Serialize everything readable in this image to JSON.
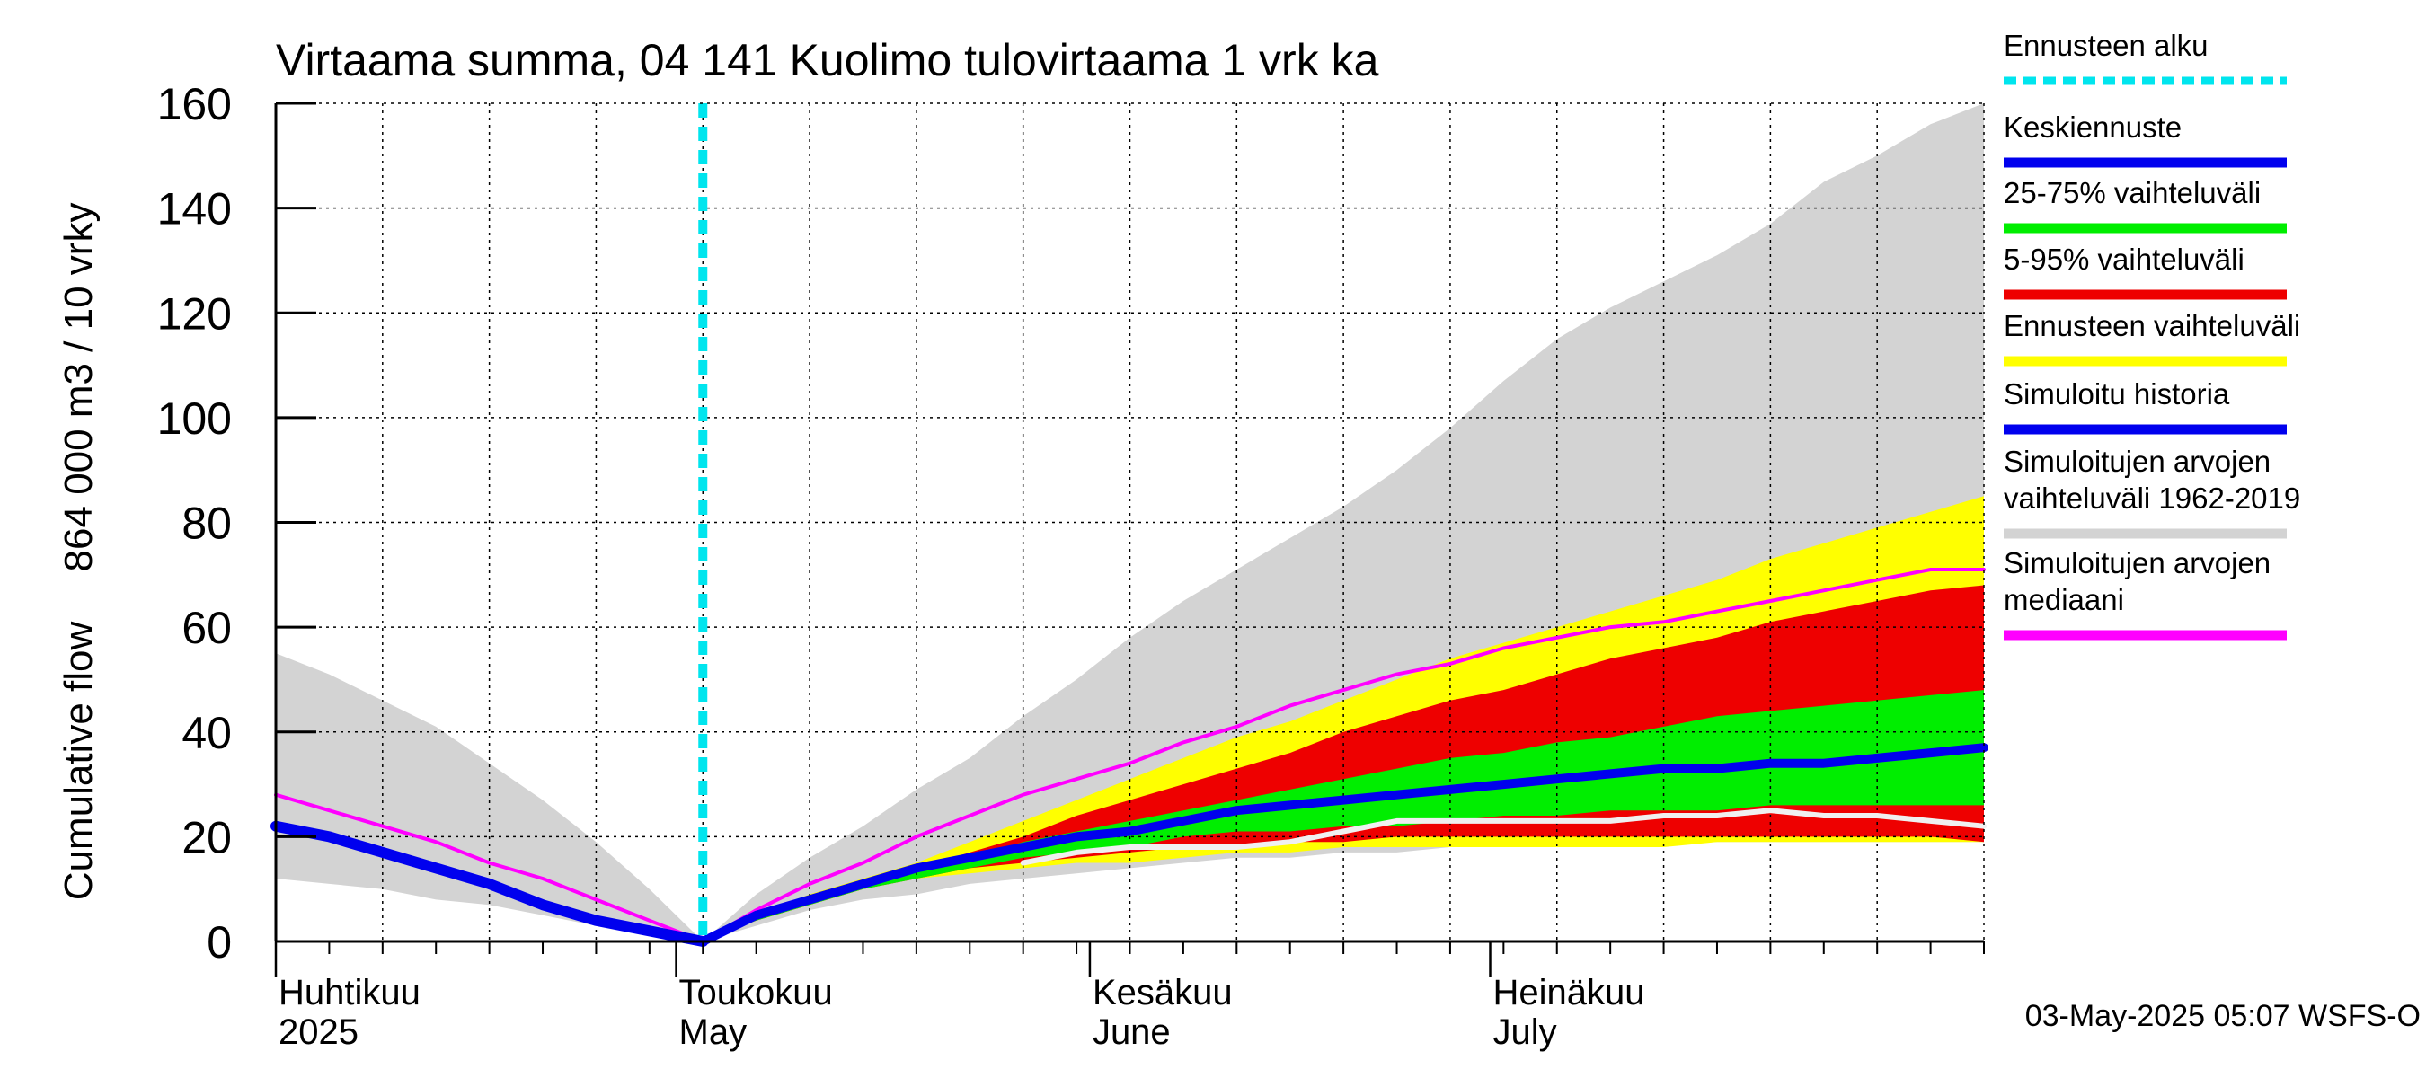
{
  "chart_data": {
    "type": "area",
    "title": "Virtaama summa, 04 141 Kuolimo tulovirtaama 1 vrk ka",
    "ylabel": "864 000 m3 / 10 vrky",
    "ylabel2": "Cumulative flow",
    "ylim": [
      0,
      160
    ],
    "y_ticks": [
      0,
      20,
      40,
      60,
      80,
      100,
      120,
      140,
      160
    ],
    "x_range_days": [
      0,
      128
    ],
    "month_labels": [
      {
        "fi": "Huhtikuu",
        "en": "2025",
        "day": 0
      },
      {
        "fi": "Toukokuu",
        "en": "May",
        "day": 30
      },
      {
        "fi": "Kesäkuu",
        "en": "June",
        "day": 61
      },
      {
        "fi": "Heinäkuu",
        "en": "July",
        "day": 91
      }
    ],
    "forecast_start_day": 32,
    "timestamp": "03-May-2025 05:07 WSFS-O",
    "legend": [
      {
        "label": "Ennusteen alku",
        "color": "#00e5ee",
        "style": "dotted"
      },
      {
        "label": "Keskiennuste",
        "color": "#0000ee",
        "style": "line"
      },
      {
        "label": "25-75% vaihteluväli",
        "color": "#00ee00",
        "style": "line"
      },
      {
        "label": "5-95% vaihteluväli",
        "color": "#ee0000",
        "style": "line"
      },
      {
        "label": "Ennusteen vaihteluväli",
        "color": "#ffff00",
        "style": "line"
      },
      {
        "label": "Simuloitu historia",
        "color": "#0000ee",
        "style": "line"
      },
      {
        "label": "Simuloitujen arvojen vaihteluväli 1962-2019",
        "lines": [
          "Simuloitujen arvojen",
          "vaihteluväli 1962-2019"
        ],
        "color": "#d3d3d3",
        "style": "line"
      },
      {
        "label": "Simuloitujen arvojen mediaani",
        "lines": [
          "Simuloitujen arvojen",
          "mediaani"
        ],
        "color": "#ff00ff",
        "style": "line"
      }
    ],
    "series": {
      "hist_range": {
        "name": "Simuloitujen arvojen vaihteluväli 1962-2019",
        "color": "#d3d3d3",
        "x": [
          0,
          4,
          8,
          12,
          16,
          20,
          24,
          28,
          32,
          36,
          40,
          44,
          48,
          52,
          56,
          60,
          64,
          68,
          72,
          76,
          80,
          84,
          88,
          92,
          96,
          100,
          104,
          108,
          112,
          116,
          120,
          124,
          128
        ],
        "upper": [
          55,
          51,
          46,
          41,
          34,
          27,
          19,
          10,
          0,
          9,
          16,
          22,
          29,
          35,
          43,
          50,
          58,
          65,
          71,
          77,
          83,
          90,
          98,
          107,
          115,
          121,
          126,
          131,
          137,
          145,
          150,
          156,
          160
        ],
        "lower": [
          12,
          11,
          10,
          8,
          7,
          5,
          3,
          2,
          0,
          3,
          6,
          8,
          9,
          11,
          12,
          13,
          14,
          15,
          16,
          16,
          17,
          17,
          18,
          18,
          18,
          19,
          19,
          19,
          19,
          19,
          19,
          19,
          19
        ]
      },
      "ennuste_range": {
        "name": "Ennusteen vaihteluväli",
        "color": "#ffff00",
        "x": [
          32,
          36,
          40,
          44,
          48,
          52,
          56,
          60,
          64,
          68,
          72,
          76,
          80,
          84,
          88,
          92,
          96,
          100,
          104,
          108,
          112,
          116,
          120,
          124,
          128
        ],
        "upper": [
          0,
          5,
          9,
          12,
          15,
          19,
          23,
          27,
          31,
          35,
          39,
          42,
          46,
          50,
          54,
          57,
          60,
          63,
          66,
          69,
          73,
          76,
          79,
          82,
          85
        ],
        "lower": [
          0,
          4,
          7,
          10,
          12,
          13,
          14,
          15,
          15,
          16,
          17,
          17,
          18,
          18,
          18,
          18,
          18,
          18,
          18,
          19,
          19,
          19,
          19,
          19,
          19
        ]
      },
      "p5_95": {
        "name": "5-95% vaihteluväli",
        "color": "#ee0000",
        "x": [
          32,
          36,
          40,
          44,
          48,
          52,
          56,
          60,
          64,
          68,
          72,
          76,
          80,
          84,
          88,
          92,
          96,
          100,
          104,
          108,
          112,
          116,
          120,
          124,
          128
        ],
        "upper": [
          0,
          5,
          8,
          11,
          14,
          17,
          20,
          24,
          27,
          30,
          33,
          36,
          40,
          43,
          46,
          48,
          51,
          54,
          56,
          58,
          61,
          63,
          65,
          67,
          68
        ],
        "lower": [
          0,
          4,
          7,
          10,
          12,
          14,
          15,
          16,
          17,
          18,
          18,
          19,
          19,
          20,
          20,
          20,
          20,
          20,
          20,
          20,
          20,
          20,
          20,
          20,
          19
        ]
      },
      "p25_75": {
        "name": "25-75% vaihteluväli",
        "color": "#00ee00",
        "x": [
          32,
          36,
          40,
          44,
          48,
          52,
          56,
          60,
          64,
          68,
          72,
          76,
          80,
          84,
          88,
          92,
          96,
          100,
          104,
          108,
          112,
          116,
          120,
          124,
          128
        ],
        "upper": [
          0,
          5,
          8,
          11,
          14,
          16,
          19,
          21,
          23,
          25,
          27,
          29,
          31,
          33,
          35,
          36,
          38,
          39,
          41,
          43,
          44,
          45,
          46,
          47,
          48
        ],
        "lower": [
          0,
          4,
          7,
          10,
          12,
          14,
          16,
          17,
          18,
          20,
          21,
          21,
          22,
          22,
          23,
          24,
          24,
          25,
          25,
          25,
          26,
          26,
          26,
          26,
          26
        ]
      },
      "keskiennuste": {
        "name": "Keskiennuste",
        "color": "#0000ee",
        "x": [
          32,
          36,
          40,
          44,
          48,
          52,
          56,
          60,
          64,
          68,
          72,
          76,
          80,
          84,
          88,
          92,
          96,
          100,
          104,
          108,
          112,
          116,
          120,
          124,
          128
        ],
        "values": [
          0,
          5,
          8,
          11,
          14,
          16,
          18,
          20,
          21,
          23,
          25,
          26,
          27,
          28,
          29,
          30,
          31,
          32,
          33,
          33,
          34,
          34,
          35,
          36,
          37
        ]
      },
      "simuloitu_historia": {
        "name": "Simuloitu historia",
        "color": "#0000ee",
        "x": [
          0,
          4,
          8,
          12,
          16,
          20,
          24,
          28,
          32
        ],
        "values": [
          22,
          20,
          17,
          14,
          11,
          7,
          4,
          2,
          0
        ]
      },
      "mediaani": {
        "name": "Simuloitujen arvojen mediaani",
        "color": "#ff00ff",
        "x": [
          0,
          4,
          8,
          12,
          16,
          20,
          24,
          28,
          32,
          36,
          40,
          44,
          48,
          52,
          56,
          60,
          64,
          68,
          72,
          76,
          80,
          84,
          88,
          92,
          96,
          100,
          104,
          108,
          112,
          116,
          120,
          124,
          128
        ],
        "values": [
          28,
          25,
          22,
          19,
          15,
          12,
          8,
          4,
          0,
          6,
          11,
          15,
          20,
          24,
          28,
          31,
          34,
          38,
          41,
          45,
          48,
          51,
          53,
          56,
          58,
          60,
          61,
          63,
          65,
          67,
          69,
          71,
          71
        ]
      },
      "white_line": {
        "name": "valkoinen viiva",
        "color": "#f0f0f0",
        "x": [
          56,
          60,
          64,
          68,
          72,
          76,
          80,
          84,
          88,
          92,
          96,
          100,
          104,
          108,
          112,
          116,
          120,
          124,
          128
        ],
        "values": [
          15,
          17,
          18,
          18,
          18,
          19,
          21,
          23,
          23,
          23,
          23,
          23,
          24,
          24,
          25,
          24,
          24,
          23,
          22
        ]
      }
    }
  }
}
